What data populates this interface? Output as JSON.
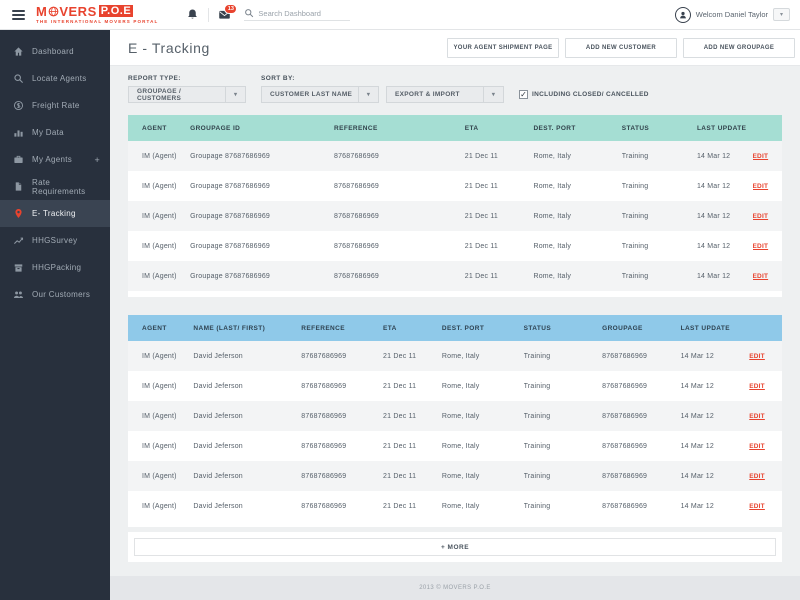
{
  "header": {
    "logo": {
      "part1": "M",
      "part2": "VERS",
      "box": "P.O.E",
      "tagline": "THE INTERNATIONAL MOVERS PORTAL"
    },
    "badge_count": "13",
    "search_placeholder": "Search Dashboard",
    "user_name": "Welcom Daniel Taylor"
  },
  "sidebar": {
    "items": [
      {
        "label": "Dashboard",
        "icon": "home-icon",
        "active": false
      },
      {
        "label": "Locate Agents",
        "icon": "search-icon",
        "active": false
      },
      {
        "label": "Freight Rate",
        "icon": "freight-icon",
        "active": false
      },
      {
        "label": "My Data",
        "icon": "chart-bar-icon",
        "active": false
      },
      {
        "label": "My Agents",
        "icon": "briefcase-icon",
        "active": false,
        "suffix": "+"
      },
      {
        "label": "Rate Requirements",
        "icon": "document-icon",
        "active": false
      },
      {
        "label": "E- Tracking",
        "icon": "map-pin-icon",
        "active": true
      },
      {
        "label": "HHGSurvey",
        "icon": "chart-line-icon",
        "active": false
      },
      {
        "label": "HHGPacking",
        "icon": "package-icon",
        "active": false
      },
      {
        "label": "Our Customers",
        "icon": "users-icon",
        "active": false
      }
    ]
  },
  "page": {
    "title": "E - Tracking",
    "actions": [
      "YOUR AGENT SHIPMENT PAGE",
      "ADD NEW CUSTOMER",
      "ADD NEW GROUPAGE"
    ]
  },
  "filters": {
    "report_type": {
      "label": "REPORT TYPE:",
      "value": "GROUPAGE / CUSTOMERS"
    },
    "sort_by": {
      "label": "SORT BY:",
      "value": "CUSTOMER LAST NAME"
    },
    "export_import": {
      "value": "EXPORT & IMPORT"
    },
    "include_checkbox": {
      "label": "INCLUDING CLOSED/ CANCELLED",
      "checked": true
    }
  },
  "groupage_table": {
    "headers": [
      "AGENT",
      "GROUPAGE ID",
      "REFERENCE",
      "ETA",
      "DEST. PORT",
      "STATUS",
      "LAST UPDATE"
    ],
    "edit_label": "EDIT",
    "rows": [
      [
        "IM (Agent)",
        "Groupage 87687686969",
        "87687686969",
        "21 Dec 11",
        "Rome, Italy",
        "Training",
        "14 Mar 12"
      ],
      [
        "IM (Agent)",
        "Groupage 87687686969",
        "87687686969",
        "21 Dec 11",
        "Rome, Italy",
        "Training",
        "14 Mar 12"
      ],
      [
        "IM (Agent)",
        "Groupage 87687686969",
        "87687686969",
        "21 Dec 11",
        "Rome, Italy",
        "Training",
        "14 Mar 12"
      ],
      [
        "IM (Agent)",
        "Groupage 87687686969",
        "87687686969",
        "21 Dec 11",
        "Rome, Italy",
        "Training",
        "14 Mar 12"
      ],
      [
        "IM (Agent)",
        "Groupage 87687686969",
        "87687686969",
        "21 Dec 11",
        "Rome, Italy",
        "Training",
        "14 Mar 12"
      ]
    ]
  },
  "customers_table": {
    "headers": [
      "AGENT",
      "NAME (LAST/ FIRST)",
      "REFERENCE",
      "ETA",
      "DEST. PORT",
      "STATUS",
      "GROUPAGE",
      "LAST UPDATE"
    ],
    "edit_label": "EDIT",
    "rows": [
      [
        "IM (Agent)",
        "David Jeferson",
        "87687686969",
        "21 Dec 11",
        "Rome, Italy",
        "Training",
        "87687686969",
        "14 Mar 12"
      ],
      [
        "IM (Agent)",
        "David Jeferson",
        "87687686969",
        "21 Dec 11",
        "Rome, Italy",
        "Training",
        "87687686969",
        "14 Mar 12"
      ],
      [
        "IM (Agent)",
        "David Jeferson",
        "87687686969",
        "21 Dec 11",
        "Rome, Italy",
        "Training",
        "87687686969",
        "14 Mar 12"
      ],
      [
        "IM (Agent)",
        "David Jeferson",
        "87687686969",
        "21 Dec 11",
        "Rome, Italy",
        "Training",
        "87687686969",
        "14 Mar 12"
      ],
      [
        "IM (Agent)",
        "David Jeferson",
        "87687686969",
        "21 Dec 11",
        "Rome, Italy",
        "Training",
        "87687686969",
        "14 Mar 12"
      ],
      [
        "IM (Agent)",
        "David Jeferson",
        "87687686969",
        "21 Dec 11",
        "Rome, Italy",
        "Training",
        "87687686969",
        "14 Mar 12"
      ]
    ]
  },
  "more_button_label": "+ MORE",
  "footer": {
    "text": "2013 © MOVERS P.O.E"
  },
  "colors": {
    "accent_red": "#e8432e",
    "table1_header": "#a5ded3",
    "table2_header": "#8fc9e9",
    "sidebar_bg": "#28303d"
  }
}
